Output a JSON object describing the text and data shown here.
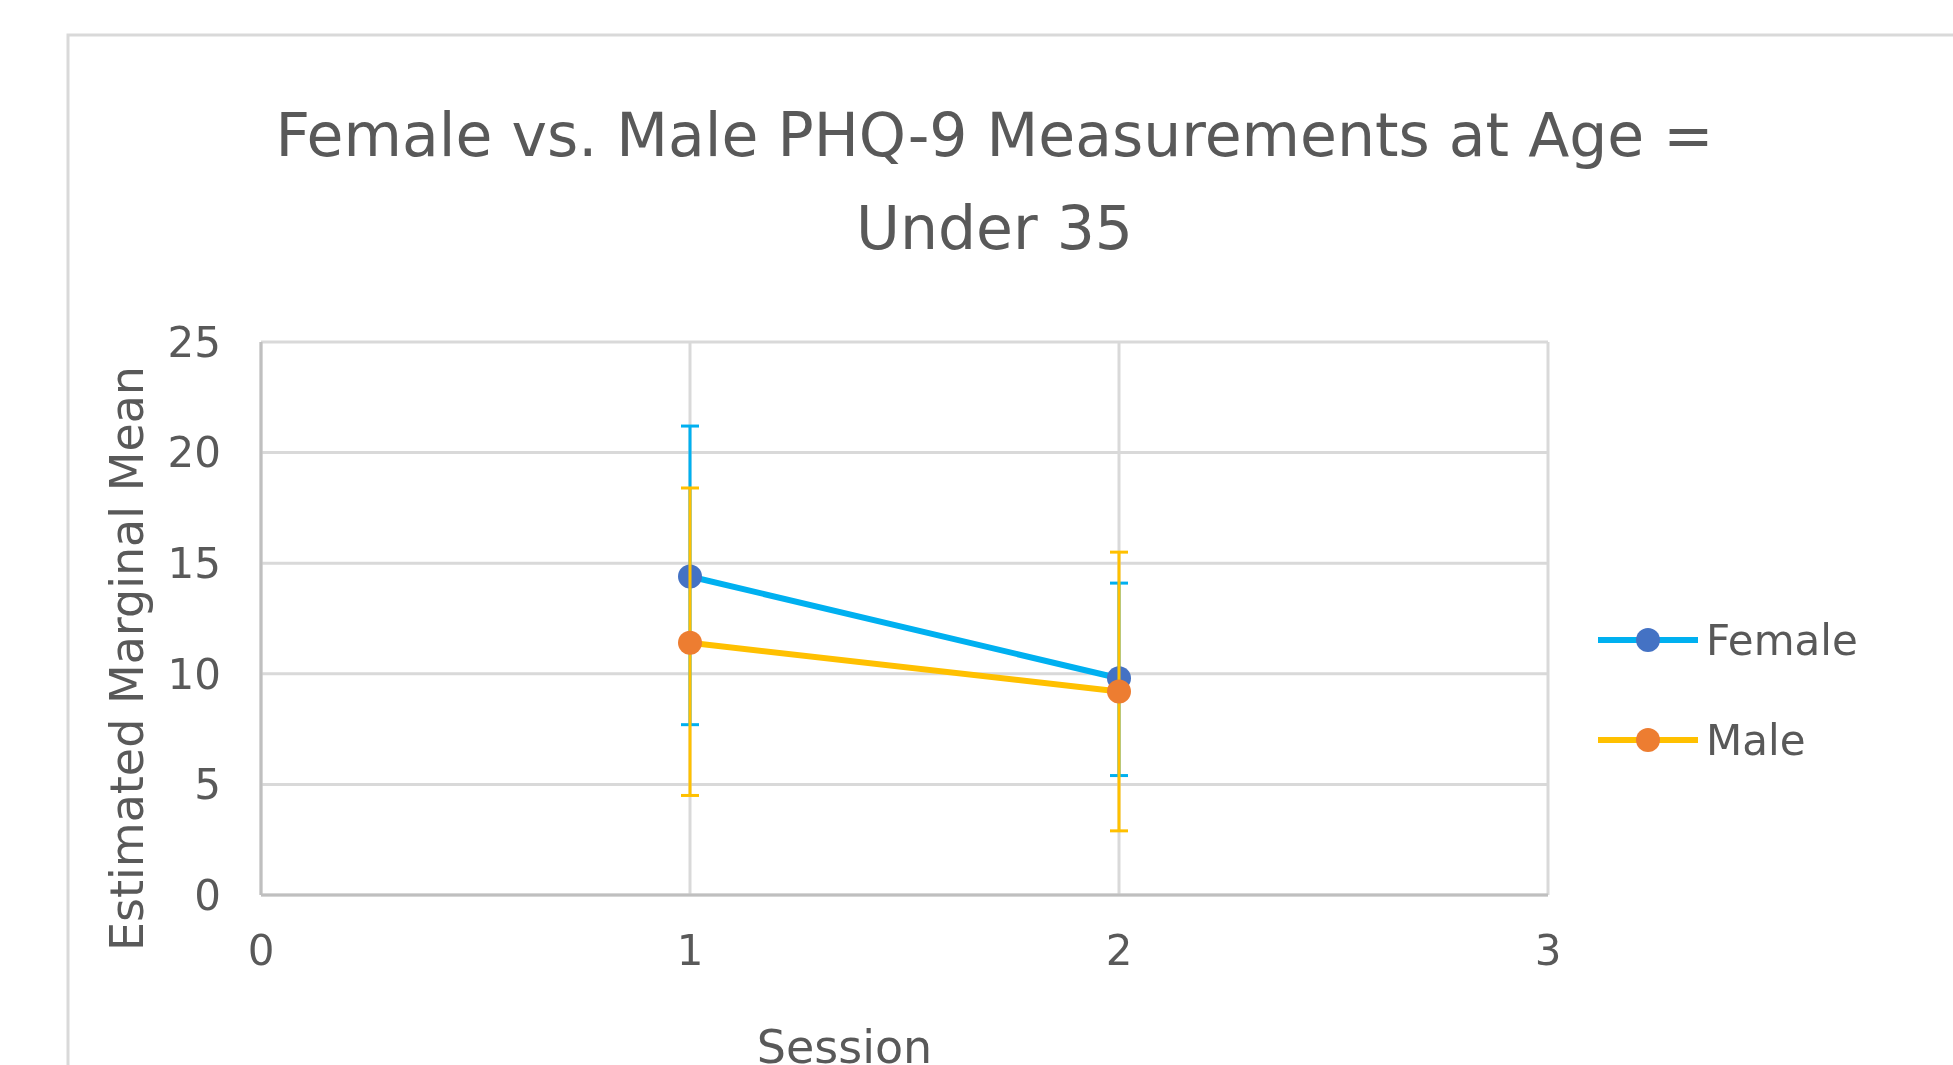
{
  "chart_data": {
    "type": "line",
    "title": "Female vs. Male PHQ-9 Measurements at Age = Under 35",
    "xlabel": "Session",
    "ylabel": "Estimated Marginal Mean",
    "x": [
      1,
      2
    ],
    "xlim": [
      0,
      3
    ],
    "xticks": [
      0,
      1,
      2,
      3
    ],
    "ylim": [
      0,
      25
    ],
    "yticks": [
      0,
      5,
      10,
      15,
      20,
      25
    ],
    "grid": true,
    "legend": "right",
    "marker": "circle",
    "series": [
      {
        "name": "Female",
        "color": "#00b0f0",
        "colors": [
          "#4472c4",
          "#4472c4"
        ],
        "values": [
          14.4,
          9.8
        ],
        "errors": [
          [
            7.7,
            21.2
          ],
          [
            5.4,
            14.1
          ]
        ]
      },
      {
        "name": "Male",
        "color": "#ffc000",
        "colors": [
          "#ed7d31",
          "#ed7d31"
        ],
        "values": [
          11.4,
          9.2
        ],
        "errors": [
          [
            4.5,
            18.4
          ],
          [
            2.9,
            15.5
          ]
        ]
      }
    ]
  }
}
